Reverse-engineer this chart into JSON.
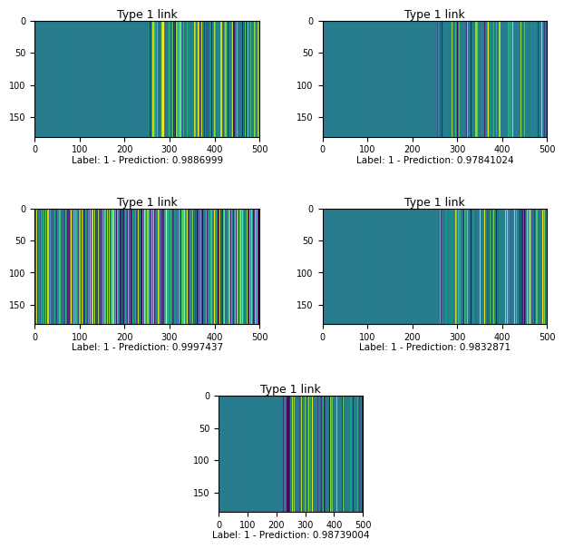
{
  "title": "Type 1 link",
  "n_cols": 512,
  "n_rows": 180,
  "subplots": [
    {
      "label": "Label: 1 - Prediction: 0.9886999",
      "teal_end": 260,
      "active_start": 260,
      "active_density": 0.6,
      "seed": 1
    },
    {
      "label": "Label: 1 - Prediction: 0.97841024",
      "teal_end": 260,
      "active_start": 260,
      "active_density": 0.38,
      "seed": 2
    },
    {
      "label": "Label: 1 - Prediction: 0.9997437",
      "teal_end": 0,
      "active_start": 0,
      "active_density": 1.0,
      "seed": 3
    },
    {
      "label": "Label: 1 - Prediction: 0.9832871",
      "teal_end": 260,
      "active_start": 260,
      "active_density": 0.38,
      "seed": 4
    },
    {
      "label": "Label: 1 - Prediction: 0.98739004",
      "teal_end": 230,
      "active_start": 230,
      "active_density": 0.5,
      "seed": 5
    }
  ],
  "cmap": "viridis",
  "teal_val": 0.42,
  "xlabel_max": 500,
  "yticks": [
    0,
    50,
    100,
    150
  ],
  "xticks": [
    0,
    100,
    200,
    300,
    400,
    500
  ],
  "title_fontsize": 9,
  "label_fontsize": 7.5,
  "tick_fontsize": 7
}
